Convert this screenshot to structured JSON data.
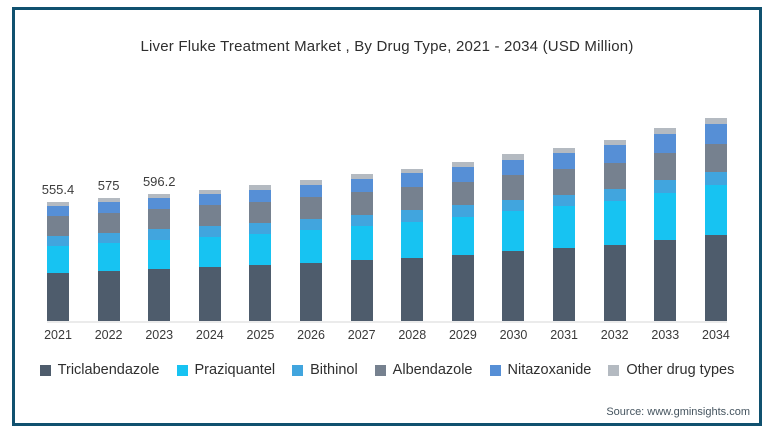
{
  "title": "Liver Fluke Treatment Market , By Drug Type, 2021 - 2034 (USD Million)",
  "source": "Source: www.gminsights.com",
  "frame_border_color": "#10516f",
  "chart_data": {
    "type": "bar",
    "stacked": true,
    "grid": false,
    "legend_position": "bottom",
    "title": "Liver Fluke Treatment Market , By Drug Type, 2021 - 2034 (USD Million)",
    "xlabel": "",
    "ylabel": "USD Million",
    "categories": [
      "2021",
      "2022",
      "2023",
      "2024",
      "2025",
      "2026",
      "2027",
      "2028",
      "2029",
      "2030",
      "2031",
      "2032",
      "2033",
      "2034"
    ],
    "totals": [
      555.4,
      575.0,
      596.2,
      615.0,
      636.0,
      660.0,
      687.0,
      714.0,
      745.0,
      780.0,
      812.0,
      849.0,
      902.0,
      953.0
    ],
    "value_labels": {
      "2021": "555.4",
      "2022": "575",
      "2023": "596.2"
    },
    "series": [
      {
        "name": "Triclabendazole",
        "color": "#4e5c6c",
        "values": [
          226.0,
          234.7,
          244.1,
          252.6,
          262.0,
          272.7,
          284.7,
          296.7,
          310.5,
          326.1,
          340.5,
          357.0,
          380.4,
          403.1
        ]
      },
      {
        "name": "Praziquantel",
        "color": "#17c3f2",
        "values": [
          125.0,
          130.3,
          136.1,
          141.3,
          147.2,
          153.8,
          161.2,
          168.7,
          177.2,
          186.8,
          195.9,
          206.1,
          220.4,
          234.4
        ]
      },
      {
        "name": "Bithinol",
        "color": "#41a5de",
        "values": [
          46.7,
          47.4,
          48.2,
          48.8,
          49.5,
          50.4,
          51.4,
          52.3,
          53.4,
          54.8,
          55.7,
          57.0,
          59.1,
          61.0
        ]
      },
      {
        "name": "Albendazole",
        "color": "#76818f",
        "values": [
          92.2,
          94.2,
          96.4,
          98.1,
          100.1,
          102.4,
          105.2,
          107.7,
          110.8,
          114.3,
          117.3,
          120.8,
          126.5,
          131.5
        ]
      },
      {
        "name": "Nitazoxanide",
        "color": "#568fd6",
        "values": [
          46.7,
          49.0,
          51.5,
          53.8,
          56.3,
          59.3,
          62.4,
          65.8,
          69.4,
          73.6,
          77.5,
          82.1,
          88.2,
          94.3
        ]
      },
      {
        "name": "Other drug types",
        "color": "#b4bac1",
        "values": [
          18.9,
          19.3,
          19.8,
          20.2,
          20.7,
          21.2,
          21.8,
          22.3,
          23.0,
          23.8,
          24.5,
          25.3,
          26.5,
          27.6
        ]
      }
    ]
  }
}
